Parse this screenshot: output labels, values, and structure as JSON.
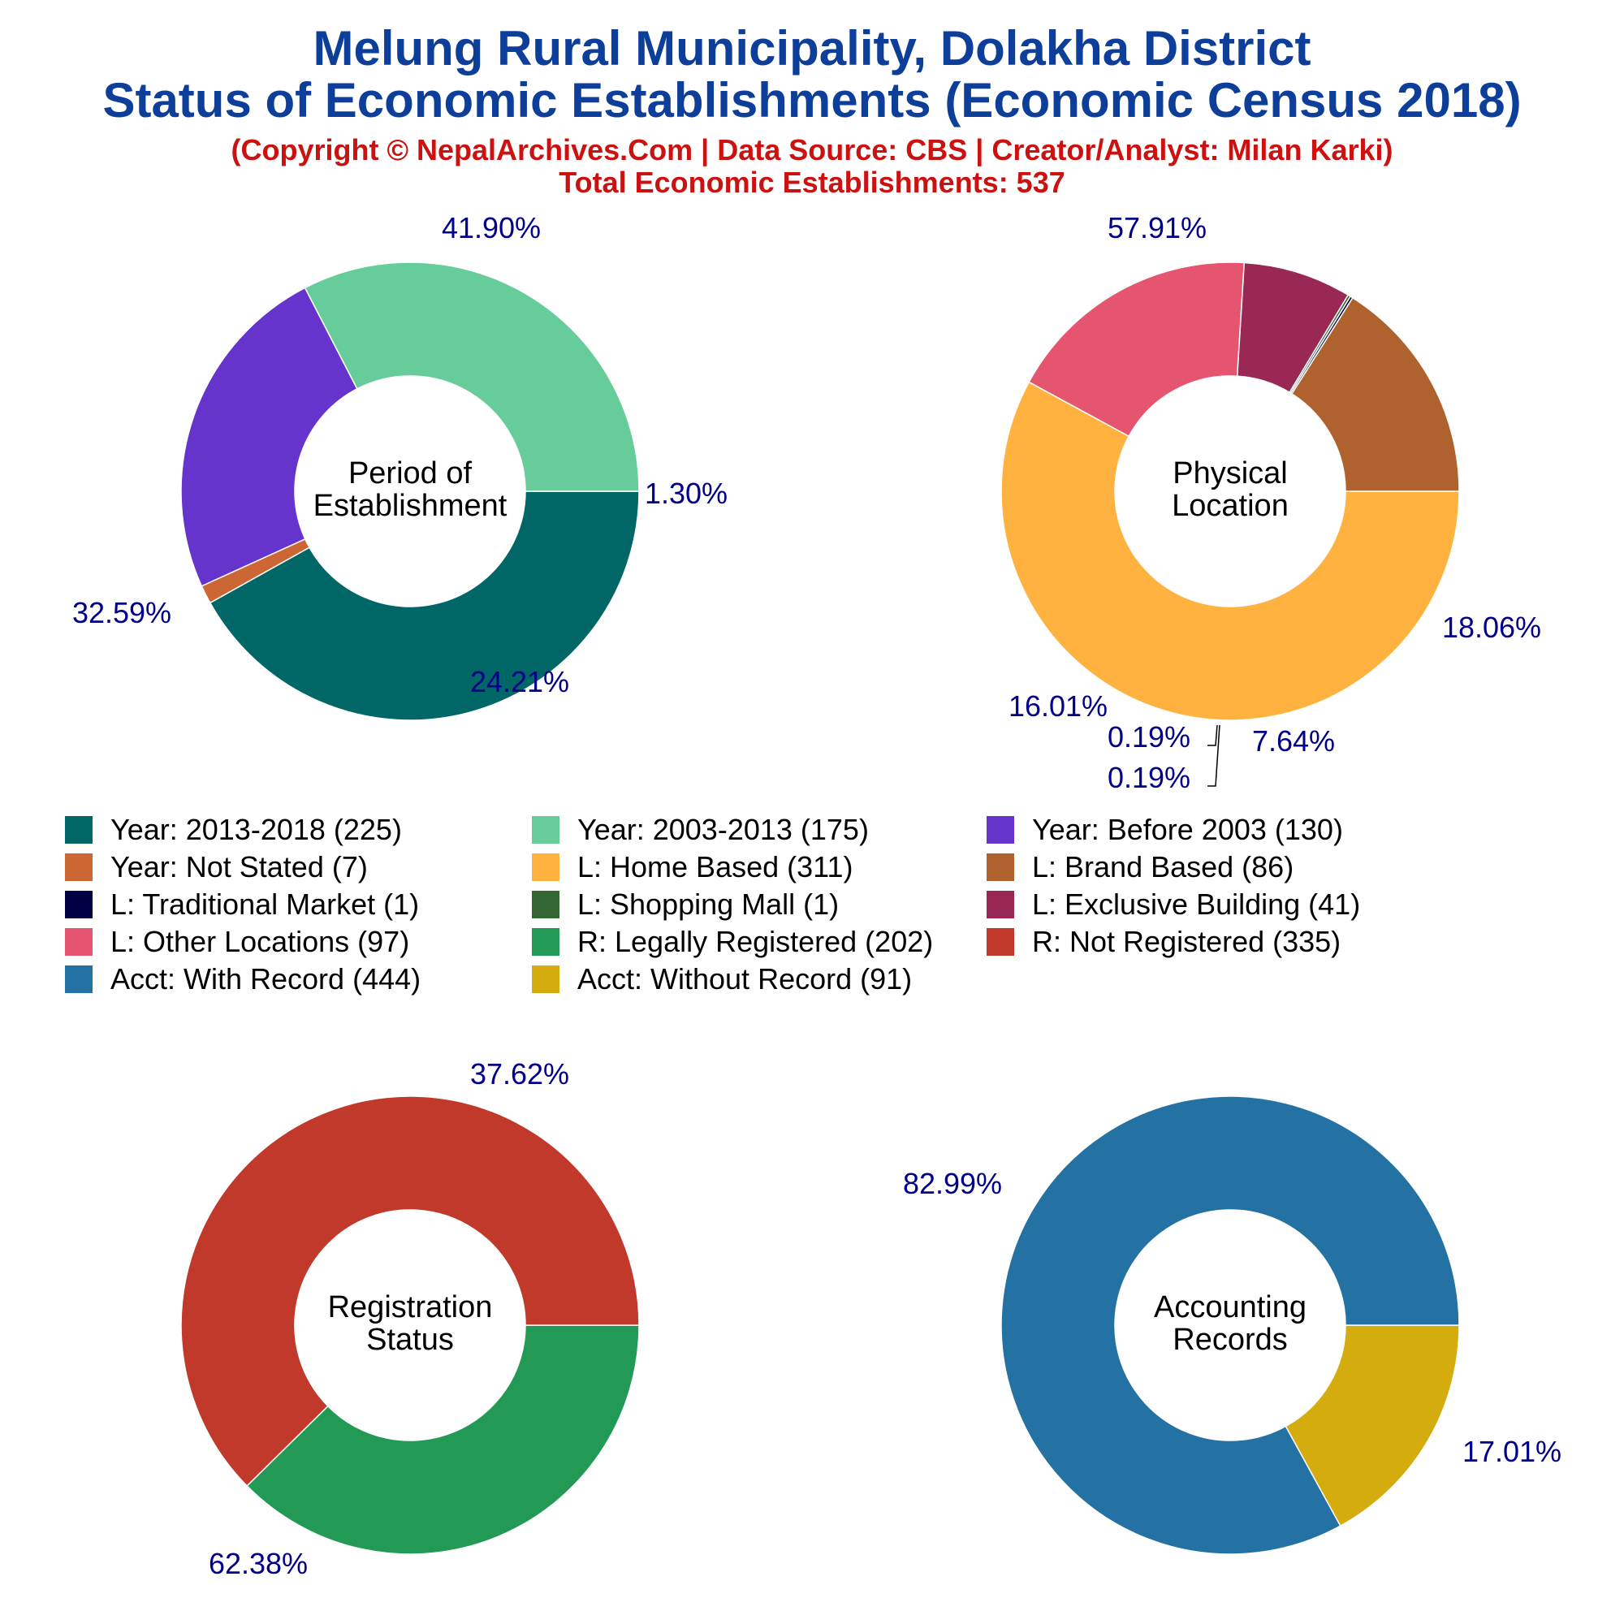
{
  "header": {
    "title_line1": "Melung Rural Municipality, Dolakha District",
    "title_line2": "Status of Economic Establishments (Economic Census 2018)",
    "credit": "(Copyright © NepalArchives.Com | Data Source: CBS | Creator/Analyst: Milan Karki)",
    "total": "Total Economic Establishments: 537"
  },
  "colors": {
    "title": "#0d3e99",
    "subtitle": "#cc1111",
    "percent_label": "#00008b"
  },
  "legend": {
    "items": [
      {
        "label": "Year: 2013-2018 (225)",
        "color": "#006666"
      },
      {
        "label": "Year: 2003-2013 (175)",
        "color": "#66cc99"
      },
      {
        "label": "Year: Before 2003 (130)",
        "color": "#6633cc"
      },
      {
        "label": "Year: Not Stated (7)",
        "color": "#cc6633"
      },
      {
        "label": "L: Home Based (311)",
        "color": "#ffb240"
      },
      {
        "label": "L: Brand Based (86)",
        "color": "#b0622e"
      },
      {
        "label": "L: Traditional Market (1)",
        "color": "#000044"
      },
      {
        "label": "L: Shopping Mall (1)",
        "color": "#336633"
      },
      {
        "label": "L: Exclusive Building (41)",
        "color": "#992855"
      },
      {
        "label": "L: Other Locations (97)",
        "color": "#e65570"
      },
      {
        "label": "R: Legally Registered (202)",
        "color": "#229955"
      },
      {
        "label": "R: Not Registered (335)",
        "color": "#c0392b"
      },
      {
        "label": "Acct: With Record (444)",
        "color": "#2471a3"
      },
      {
        "label": "Acct: Without Record (91)",
        "color": "#d4ac0d"
      }
    ]
  },
  "chart_data": [
    {
      "type": "pie",
      "center_label": [
        "Period of",
        "Establishment"
      ],
      "slices": [
        {
          "category": "Year: 2013-2018",
          "value": 225,
          "percent_label": "41.90%",
          "color": "#006666"
        },
        {
          "category": "Year: Not Stated",
          "value": 7,
          "percent_label": "1.30%",
          "color": "#cc6633"
        },
        {
          "category": "Year: Before 2003",
          "value": 130,
          "percent_label": "24.21%",
          "color": "#6633cc"
        },
        {
          "category": "Year: 2003-2013",
          "value": 175,
          "percent_label": "32.59%",
          "color": "#66cc99"
        }
      ]
    },
    {
      "type": "pie",
      "center_label": [
        "Physical",
        "Location"
      ],
      "slices": [
        {
          "category": "L: Home Based",
          "value": 311,
          "percent_label": "57.91%",
          "color": "#ffb240"
        },
        {
          "category": "L: Other Locations",
          "value": 97,
          "percent_label": "18.06%",
          "color": "#e65570"
        },
        {
          "category": "L: Exclusive Building",
          "value": 41,
          "percent_label": "7.64%",
          "color": "#992855"
        },
        {
          "category": "L: Shopping Mall",
          "value": 1,
          "percent_label": "0.19%",
          "color": "#336633"
        },
        {
          "category": "L: Traditional Market",
          "value": 1,
          "percent_label": "0.19%",
          "color": "#000044"
        },
        {
          "category": "L: Brand Based",
          "value": 86,
          "percent_label": "16.01%",
          "color": "#b0622e"
        }
      ]
    },
    {
      "type": "pie",
      "center_label": [
        "Registration",
        "Status"
      ],
      "slices": [
        {
          "category": "R: Legally Registered",
          "value": 202,
          "percent_label": "37.62%",
          "color": "#229955"
        },
        {
          "category": "R: Not Registered",
          "value": 335,
          "percent_label": "62.38%",
          "color": "#c0392b"
        }
      ]
    },
    {
      "type": "pie",
      "center_label": [
        "Accounting",
        "Records"
      ],
      "slices": [
        {
          "category": "Acct: Without Record",
          "value": 91,
          "percent_label": "17.01%",
          "color": "#d4ac0d"
        },
        {
          "category": "Acct: With Record",
          "value": 444,
          "percent_label": "82.99%",
          "color": "#2471a3"
        }
      ]
    }
  ]
}
